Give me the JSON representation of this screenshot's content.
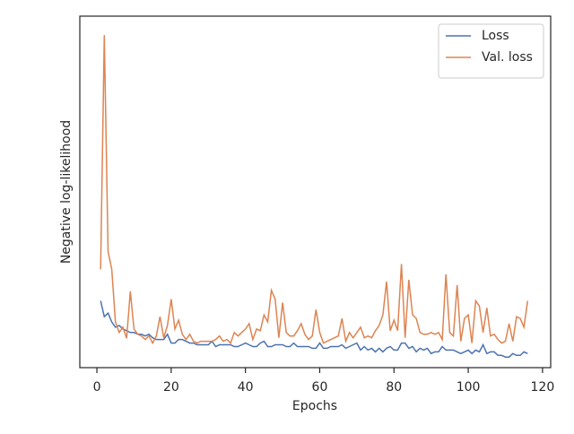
{
  "chart_data": {
    "type": "line",
    "xlabel": "Epochs",
    "ylabel": "Negative log-likelihood",
    "x": [
      1,
      2,
      3,
      4,
      5,
      6,
      7,
      8,
      9,
      10,
      11,
      12,
      13,
      14,
      15,
      16,
      17,
      18,
      19,
      20,
      21,
      22,
      23,
      24,
      25,
      26,
      27,
      28,
      29,
      30,
      31,
      32,
      33,
      34,
      35,
      36,
      37,
      38,
      39,
      40,
      41,
      42,
      43,
      44,
      45,
      46,
      47,
      48,
      49,
      50,
      51,
      52,
      53,
      54,
      55,
      56,
      57,
      58,
      59,
      60,
      61,
      62,
      63,
      64,
      65,
      66,
      67,
      68,
      69,
      70,
      71,
      72,
      73,
      74,
      75,
      76,
      77,
      78,
      79,
      80,
      81,
      82,
      83,
      84,
      85,
      86,
      87,
      88,
      89,
      90,
      91,
      92,
      93,
      94,
      95,
      96,
      97,
      98,
      99,
      100,
      101,
      102,
      103,
      104,
      105,
      106,
      107,
      108,
      109,
      110,
      111,
      112,
      113,
      114,
      115,
      116
    ],
    "series": [
      {
        "name": "Loss",
        "color": "#4c72b0",
        "values": [
          19,
          14.5,
          15.5,
          13,
          11.5,
          12,
          11,
          10.5,
          10,
          10,
          9.5,
          9.5,
          9,
          9.5,
          8.5,
          8,
          8,
          8,
          9.5,
          7,
          7,
          8,
          8,
          7.5,
          7,
          7,
          6.5,
          6.5,
          6.5,
          6.5,
          7.5,
          6,
          6.5,
          6.5,
          6.5,
          6.5,
          6,
          6,
          6.5,
          7,
          6.5,
          6,
          6,
          7,
          7.5,
          6,
          6,
          6.5,
          6.5,
          6.5,
          6,
          6,
          7,
          6,
          6,
          6,
          6,
          5.5,
          5.5,
          7,
          5.5,
          5.5,
          6,
          6,
          6,
          6.5,
          5.5,
          6,
          6.5,
          7,
          5,
          6,
          5,
          5.5,
          4.5,
          5.5,
          4.5,
          5.5,
          6,
          5,
          5,
          7,
          7,
          5.5,
          6,
          4.5,
          5.5,
          5,
          5.5,
          4,
          4.5,
          4.5,
          6,
          5,
          5,
          5,
          4.5,
          4,
          4.5,
          5,
          4,
          5,
          4.5,
          6.5,
          4,
          4.5,
          4.5,
          3.5,
          3.5,
          3,
          3,
          4,
          3.5,
          3.5,
          4.5,
          4
        ]
      },
      {
        "name": "Val. loss",
        "color": "#dd8452",
        "values": [
          28,
          94.6,
          33,
          28,
          13,
          10,
          11.5,
          8.4,
          21.7,
          11,
          9.5,
          9,
          8,
          9,
          7,
          9,
          14.5,
          8.5,
          12,
          19.5,
          11,
          13.5,
          9.5,
          8,
          9.5,
          7.5,
          7,
          7.5,
          7.5,
          7.5,
          7.5,
          8,
          9,
          7.5,
          8,
          7,
          10,
          9,
          10,
          11,
          12.5,
          8,
          11,
          10.5,
          15,
          13,
          22,
          19.5,
          8.5,
          18.5,
          10,
          9,
          9,
          10.5,
          12.5,
          9.5,
          8,
          9,
          16.5,
          10,
          7,
          7.5,
          8,
          8.5,
          9,
          14,
          7.5,
          10,
          8.5,
          10,
          11.5,
          8.5,
          9,
          8.5,
          10.5,
          12,
          15,
          24.5,
          10.5,
          13.5,
          10.5,
          29.5,
          8.5,
          25,
          15,
          14,
          10,
          9.5,
          9.5,
          10,
          9.5,
          10,
          8,
          26.5,
          10,
          9,
          23.5,
          7.5,
          14,
          15,
          7,
          19,
          17.5,
          10,
          17,
          9,
          9.5,
          8,
          7,
          7.5,
          12.5,
          7.5,
          14.5,
          14,
          11.5,
          19
        ]
      }
    ],
    "xlim": [
      -4.6,
      122.2
    ],
    "ylim": [
      0,
      100
    ],
    "xticks": [
      0,
      20,
      40,
      60,
      80,
      100,
      120
    ],
    "legend": "upper right"
  }
}
